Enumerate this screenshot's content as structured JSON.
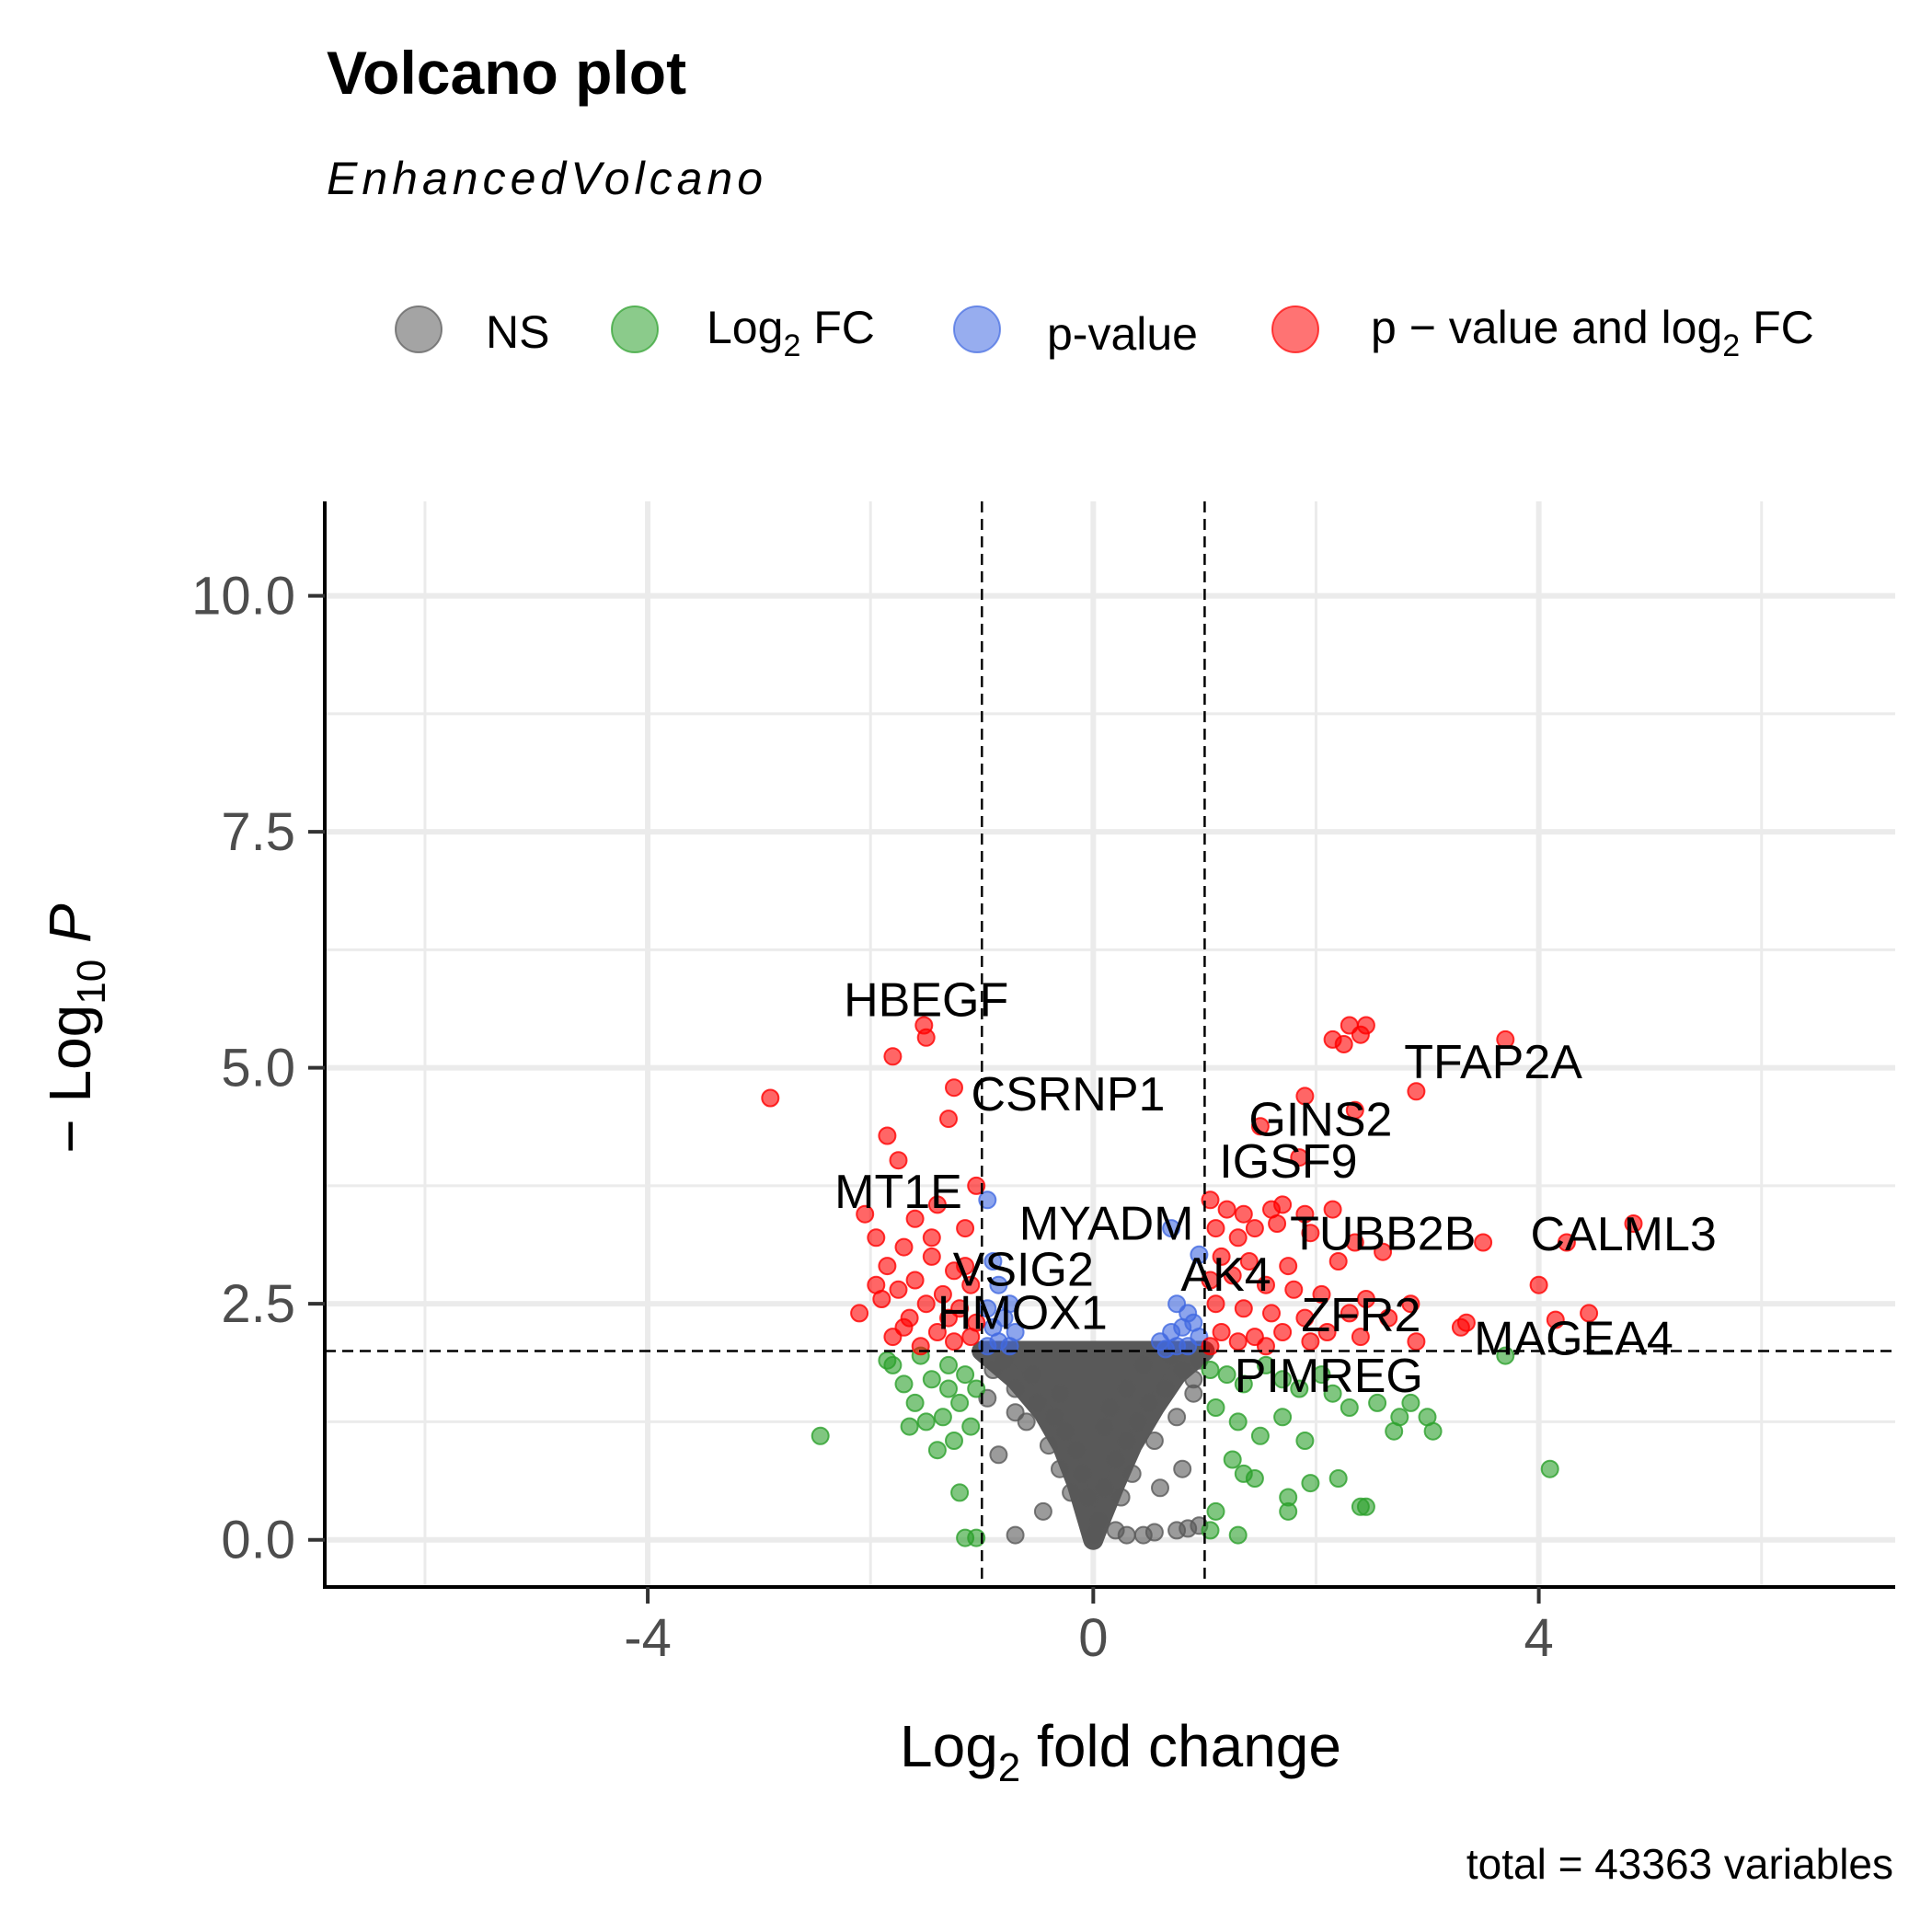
{
  "chart_data": {
    "type": "scatter",
    "title": "Volcano plot",
    "subtitle": "EnhancedVolcano",
    "caption": "total = 43363 variables",
    "xlabel": {
      "base": "Log",
      "sub": "2",
      "rest": " fold change"
    },
    "ylabel": {
      "pre": "− Log",
      "sub": "10",
      "rest": " P"
    },
    "xlim": [
      -6.9,
      7.2
    ],
    "ylim": [
      -0.5,
      11
    ],
    "xticks": [
      {
        "value": -4,
        "label": "-4"
      },
      {
        "value": 0,
        "label": "0"
      },
      {
        "value": 4,
        "label": "4"
      }
    ],
    "yticks": [
      {
        "value": 0,
        "label": "0.0"
      },
      {
        "value": 2.5,
        "label": "2.5"
      },
      {
        "value": 5,
        "label": "5.0"
      },
      {
        "value": 7.5,
        "label": "7.5"
      },
      {
        "value": 10,
        "label": "10.0"
      }
    ],
    "grid": true,
    "legend_position": "top",
    "thresholds": {
      "fc_cutoff": 1,
      "p_cutoff_neglog10": 2
    },
    "colors": {
      "NS": "#595959",
      "Log2FC": "#2ca02c",
      "pvalue": "#4169e1",
      "both": "#ff0000"
    },
    "legend": [
      {
        "key": "NS",
        "label": "NS",
        "color": "#595959"
      },
      {
        "key": "Log2FC",
        "label": "Log",
        "sub": "2",
        "rest": " FC",
        "color": "#2ca02c"
      },
      {
        "key": "pvalue",
        "label": "p-value",
        "color": "#4169e1"
      },
      {
        "key": "both",
        "label": "p − value and log",
        "sub": "2",
        "rest": " FC",
        "color": "#ff0000"
      }
    ],
    "series": [
      {
        "name": "p − value and log2 FC",
        "points": [
          [
            -1.52,
            5.45
          ],
          [
            -1.5,
            5.32
          ],
          [
            -1.8,
            5.12
          ],
          [
            -1.25,
            4.79
          ],
          [
            -2.9,
            4.68
          ],
          [
            -1.3,
            4.46
          ],
          [
            -1.85,
            4.28
          ],
          [
            -1.75,
            4.02
          ],
          [
            -1.05,
            3.75
          ],
          [
            -1.4,
            3.55
          ],
          [
            -2.05,
            3.45
          ],
          [
            -1.6,
            3.4
          ],
          [
            -1.95,
            3.2
          ],
          [
            -1.15,
            3.3
          ],
          [
            -1.7,
            3.1
          ],
          [
            -1.45,
            3.0
          ],
          [
            -1.85,
            2.9
          ],
          [
            -1.25,
            2.85
          ],
          [
            -1.6,
            2.75
          ],
          [
            -1.1,
            2.7
          ],
          [
            -1.75,
            2.65
          ],
          [
            -1.35,
            2.6
          ],
          [
            -1.9,
            2.55
          ],
          [
            -1.5,
            2.5
          ],
          [
            -2.1,
            2.4
          ],
          [
            -1.2,
            2.45
          ],
          [
            -1.65,
            2.35
          ],
          [
            -1.05,
            2.3
          ],
          [
            -1.4,
            2.2
          ],
          [
            -1.8,
            2.15
          ],
          [
            -1.25,
            2.1
          ],
          [
            -1.55,
            2.05
          ],
          [
            -1.1,
            2.15
          ],
          [
            -1.7,
            2.25
          ],
          [
            -1.3,
            2.35
          ],
          [
            -1.95,
            2.7
          ],
          [
            -1.45,
            3.2
          ],
          [
            -1.15,
            2.9
          ],
          [
            2.15,
            5.3
          ],
          [
            2.3,
            5.45
          ],
          [
            2.45,
            5.45
          ],
          [
            2.4,
            5.35
          ],
          [
            2.25,
            5.25
          ],
          [
            3.7,
            5.3
          ],
          [
            2.9,
            4.75
          ],
          [
            1.9,
            4.7
          ],
          [
            2.35,
            4.55
          ],
          [
            1.5,
            4.38
          ],
          [
            1.85,
            4.05
          ],
          [
            1.05,
            3.6
          ],
          [
            1.2,
            3.5
          ],
          [
            1.35,
            3.45
          ],
          [
            1.6,
            3.5
          ],
          [
            1.7,
            3.55
          ],
          [
            1.9,
            3.45
          ],
          [
            2.15,
            3.5
          ],
          [
            1.1,
            3.3
          ],
          [
            1.3,
            3.2
          ],
          [
            1.45,
            3.3
          ],
          [
            1.65,
            3.35
          ],
          [
            1.95,
            3.25
          ],
          [
            2.35,
            3.15
          ],
          [
            2.6,
            3.05
          ],
          [
            3.5,
            3.15
          ],
          [
            4.25,
            3.15
          ],
          [
            4.85,
            3.35
          ],
          [
            1.15,
            3.0
          ],
          [
            1.4,
            2.95
          ],
          [
            1.75,
            2.9
          ],
          [
            2.2,
            2.95
          ],
          [
            1.05,
            2.75
          ],
          [
            1.25,
            2.8
          ],
          [
            1.55,
            2.7
          ],
          [
            1.8,
            2.65
          ],
          [
            2.05,
            2.6
          ],
          [
            2.45,
            2.55
          ],
          [
            2.85,
            2.5
          ],
          [
            4.0,
            2.7
          ],
          [
            1.1,
            2.5
          ],
          [
            1.35,
            2.45
          ],
          [
            1.6,
            2.4
          ],
          [
            1.9,
            2.35
          ],
          [
            2.3,
            2.4
          ],
          [
            2.65,
            2.35
          ],
          [
            3.35,
            2.3
          ],
          [
            3.3,
            2.25
          ],
          [
            4.45,
            2.4
          ],
          [
            4.15,
            2.33
          ],
          [
            1.15,
            2.2
          ],
          [
            1.45,
            2.15
          ],
          [
            1.7,
            2.2
          ],
          [
            1.95,
            2.1
          ],
          [
            2.1,
            2.2
          ],
          [
            2.4,
            2.15
          ],
          [
            2.9,
            2.1
          ],
          [
            1.05,
            2.05
          ],
          [
            1.3,
            2.1
          ],
          [
            1.55,
            2.05
          ]
        ]
      },
      {
        "name": "p-value",
        "points": [
          [
            -0.95,
            3.6
          ],
          [
            -0.9,
            2.95
          ],
          [
            -0.85,
            2.7
          ],
          [
            -0.75,
            2.5
          ],
          [
            -0.95,
            2.45
          ],
          [
            -0.8,
            2.35
          ],
          [
            -0.9,
            2.25
          ],
          [
            -0.7,
            2.2
          ],
          [
            -0.85,
            2.1
          ],
          [
            -0.95,
            2.05
          ],
          [
            -0.75,
            2.05
          ],
          [
            0.7,
            3.3
          ],
          [
            0.95,
            3.02
          ],
          [
            0.75,
            2.5
          ],
          [
            0.85,
            2.4
          ],
          [
            0.9,
            2.3
          ],
          [
            0.8,
            2.25
          ],
          [
            0.7,
            2.2
          ],
          [
            0.95,
            2.15
          ],
          [
            0.6,
            2.1
          ],
          [
            0.75,
            2.05
          ],
          [
            0.85,
            2.05
          ],
          [
            0.65,
            2.02
          ]
        ]
      },
      {
        "name": "Log2 FC",
        "points": [
          [
            -2.45,
            1.1
          ],
          [
            -1.8,
            1.85
          ],
          [
            -1.85,
            1.9
          ],
          [
            -1.55,
            1.95
          ],
          [
            -1.3,
            1.85
          ],
          [
            -1.45,
            1.7
          ],
          [
            -1.7,
            1.65
          ],
          [
            -1.6,
            1.45
          ],
          [
            -1.2,
            1.45
          ],
          [
            -1.35,
            1.3
          ],
          [
            -1.5,
            1.25
          ],
          [
            -1.1,
            1.2
          ],
          [
            -1.25,
            1.05
          ],
          [
            -1.4,
            0.95
          ],
          [
            -1.2,
            0.5
          ],
          [
            -1.15,
            0.02
          ],
          [
            -1.05,
            0.02
          ],
          [
            -1.05,
            1.6
          ],
          [
            -1.15,
            1.75
          ],
          [
            -1.65,
            1.2
          ],
          [
            -1.3,
            1.6
          ],
          [
            1.05,
            1.8
          ],
          [
            1.2,
            1.75
          ],
          [
            1.35,
            1.65
          ],
          [
            1.55,
            1.85
          ],
          [
            1.7,
            1.7
          ],
          [
            1.85,
            1.6
          ],
          [
            2.05,
            1.75
          ],
          [
            2.15,
            1.55
          ],
          [
            2.3,
            1.4
          ],
          [
            2.55,
            1.45
          ],
          [
            2.75,
            1.3
          ],
          [
            2.85,
            1.45
          ],
          [
            2.7,
            1.15
          ],
          [
            3.0,
            1.3
          ],
          [
            3.05,
            1.15
          ],
          [
            3.7,
            1.95
          ],
          [
            4.1,
            0.75
          ],
          [
            1.1,
            1.4
          ],
          [
            1.3,
            1.25
          ],
          [
            1.5,
            1.1
          ],
          [
            1.7,
            1.3
          ],
          [
            1.9,
            1.05
          ],
          [
            1.25,
            0.85
          ],
          [
            1.45,
            0.65
          ],
          [
            1.35,
            0.7
          ],
          [
            1.95,
            0.6
          ],
          [
            2.2,
            0.65
          ],
          [
            1.75,
            0.45
          ],
          [
            1.75,
            0.3
          ],
          [
            2.45,
            0.35
          ],
          [
            2.4,
            0.35
          ],
          [
            1.1,
            0.3
          ],
          [
            1.3,
            0.05
          ],
          [
            1.05,
            0.1
          ]
        ]
      },
      {
        "name": "NS",
        "points": [
          [
            -0.9,
            1.8
          ],
          [
            -0.7,
            1.6
          ],
          [
            -0.5,
            1.45
          ],
          [
            -0.35,
            1.3
          ],
          [
            -0.25,
            1.15
          ],
          [
            -0.15,
            0.95
          ],
          [
            -0.1,
            0.7
          ],
          [
            -0.05,
            0.45
          ],
          [
            0.0,
            0.05
          ],
          [
            0.05,
            0.2
          ],
          [
            0.1,
            0.55
          ],
          [
            0.2,
            0.85
          ],
          [
            0.3,
            1.05
          ],
          [
            0.4,
            1.25
          ],
          [
            0.5,
            1.45
          ],
          [
            0.65,
            1.6
          ],
          [
            0.8,
            1.8
          ],
          [
            0.95,
            1.9
          ],
          [
            -0.95,
            1.5
          ],
          [
            -0.6,
            1.25
          ],
          [
            -0.4,
            1.0
          ],
          [
            -0.3,
            0.75
          ],
          [
            -0.2,
            0.5
          ],
          [
            0.25,
            0.45
          ],
          [
            0.35,
            0.7
          ],
          [
            0.55,
            1.05
          ],
          [
            0.75,
            1.3
          ],
          [
            0.9,
            1.55
          ],
          [
            -0.8,
            1.9
          ],
          [
            0.9,
            1.7
          ],
          [
            -0.7,
            1.35
          ],
          [
            0.15,
            1.4
          ],
          [
            0.3,
            1.6
          ],
          [
            0.2,
            0.1
          ],
          [
            0.3,
            0.05
          ],
          [
            0.45,
            0.05
          ],
          [
            0.55,
            0.08
          ],
          [
            0.75,
            0.1
          ],
          [
            0.85,
            0.12
          ],
          [
            0.95,
            0.15
          ],
          [
            -0.45,
            0.3
          ],
          [
            -0.7,
            0.05
          ],
          [
            0.6,
            0.55
          ],
          [
            0.8,
            0.75
          ],
          [
            -0.85,
            0.9
          ],
          [
            -0.55,
            1.75
          ],
          [
            0.45,
            1.85
          ],
          [
            0.7,
            1.95
          ],
          [
            -0.3,
            1.55
          ],
          [
            0.1,
            1.2
          ]
        ]
      }
    ],
    "ns_fill": {
      "name": "NS",
      "left_edge": [
        [
          -1.0,
          2.0
        ],
        [
          -0.7,
          1.7
        ],
        [
          -0.45,
          1.35
        ],
        [
          -0.28,
          1.0
        ],
        [
          -0.15,
          0.6
        ],
        [
          -0.05,
          0.2
        ],
        [
          0.0,
          0.0
        ]
      ],
      "right_edge": [
        [
          0.0,
          0.0
        ],
        [
          0.08,
          0.25
        ],
        [
          0.2,
          0.6
        ],
        [
          0.35,
          1.0
        ],
        [
          0.55,
          1.4
        ],
        [
          0.75,
          1.75
        ],
        [
          1.0,
          2.0
        ]
      ]
    },
    "labels": [
      {
        "gene": "HBEGF",
        "x": -1.5,
        "y": 5.45,
        "text": "HBEGF"
      },
      {
        "gene": "CSRNP1",
        "x": -1.25,
        "y": 4.79,
        "text": "CSRNP1"
      },
      {
        "gene": "MT1E",
        "x": -1.75,
        "y": 4.02,
        "text": "MT1E"
      },
      {
        "gene": "MYADM",
        "x": -1.45,
        "y": 3.2,
        "text": "MYADM"
      },
      {
        "gene": "VSIG2",
        "x": -1.55,
        "y": 2.75,
        "text": "VSIG2"
      },
      {
        "gene": "HMOX1",
        "x": -1.4,
        "y": 2.35,
        "text": "HMOX1"
      },
      {
        "gene": "TFAP2A",
        "x": 3.7,
        "y": 5.3,
        "text": "TFAP2A"
      },
      {
        "gene": "GINS2",
        "x": 2.9,
        "y": 4.75,
        "text": "GINS2"
      },
      {
        "gene": "IGSF9",
        "x": 1.85,
        "y": 4.05,
        "text": "IGSF9"
      },
      {
        "gene": "CALML3",
        "x": 4.85,
        "y": 3.35,
        "text": "CALML3"
      },
      {
        "gene": "TUBB2B",
        "x": 3.5,
        "y": 3.15,
        "text": "TUBB2B"
      },
      {
        "gene": "AK4",
        "x": 0.95,
        "y": 3.02,
        "text": "AK4"
      },
      {
        "gene": "ZFR2",
        "x": 2.85,
        "y": 2.5,
        "text": "ZFR2"
      },
      {
        "gene": "MAGEA4",
        "x": 4.45,
        "y": 2.4,
        "text": "MAGEA4"
      },
      {
        "gene": "PIMREG",
        "x": 1.3,
        "y": 2.1,
        "text": "PIMREG"
      }
    ]
  }
}
